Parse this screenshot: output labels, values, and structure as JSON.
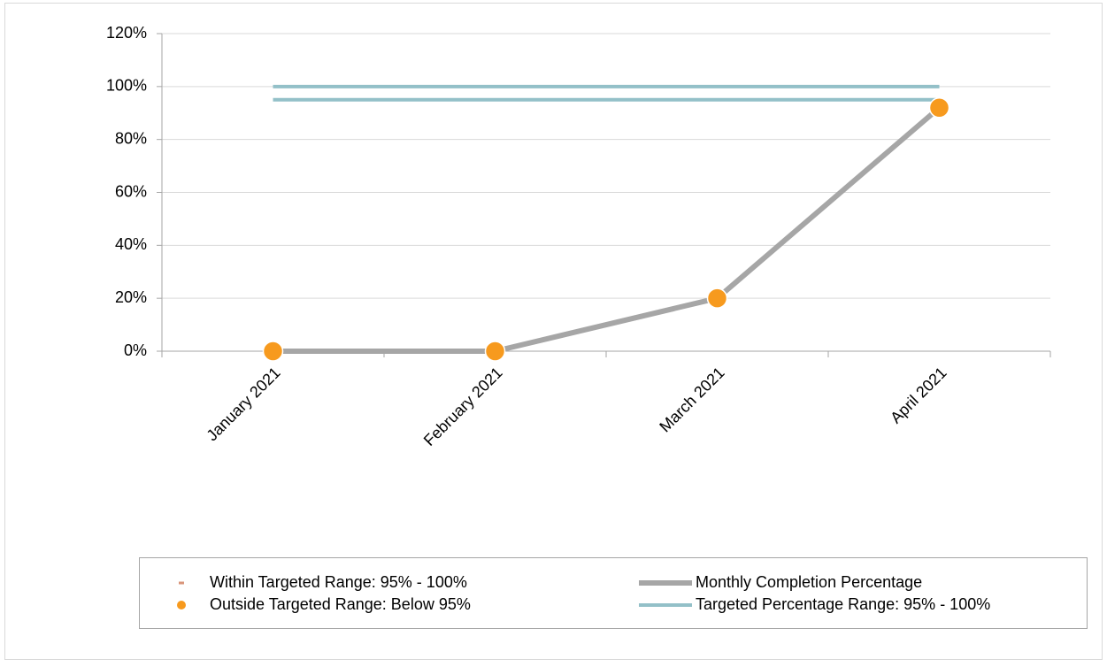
{
  "chart_data": {
    "type": "line",
    "categories": [
      "January 2021",
      "February 2021",
      "March 2021",
      "April 2021"
    ],
    "series": [
      {
        "name": "Within Targeted Range: 95% - 100%",
        "style": "marker-dash",
        "color": "#d9957a",
        "values": [
          null,
          null,
          null,
          null
        ]
      },
      {
        "name": "Outside Targeted Range: Below 95%",
        "style": "marker-dot",
        "color": "#f79a1e",
        "values": [
          0,
          0,
          20,
          92
        ]
      },
      {
        "name": "Monthly Completion Percentage",
        "style": "line",
        "color": "#a6a6a6",
        "values": [
          0,
          0,
          20,
          92
        ]
      },
      {
        "name": "Targeted Percentage Range: 95% - 100%",
        "style": "band",
        "color": "#93c0c8",
        "values": [
          95,
          95,
          95,
          95
        ],
        "upper_values": [
          100,
          100,
          100,
          100
        ]
      }
    ],
    "ylim": [
      0,
      120
    ],
    "yticks": [
      {
        "value": 0,
        "label": "0%"
      },
      {
        "value": 20,
        "label": "20%"
      },
      {
        "value": 40,
        "label": "40%"
      },
      {
        "value": 60,
        "label": "60%"
      },
      {
        "value": 80,
        "label": "80%"
      },
      {
        "value": 100,
        "label": "100%"
      },
      {
        "value": 120,
        "label": "120%"
      }
    ],
    "grid": true
  }
}
